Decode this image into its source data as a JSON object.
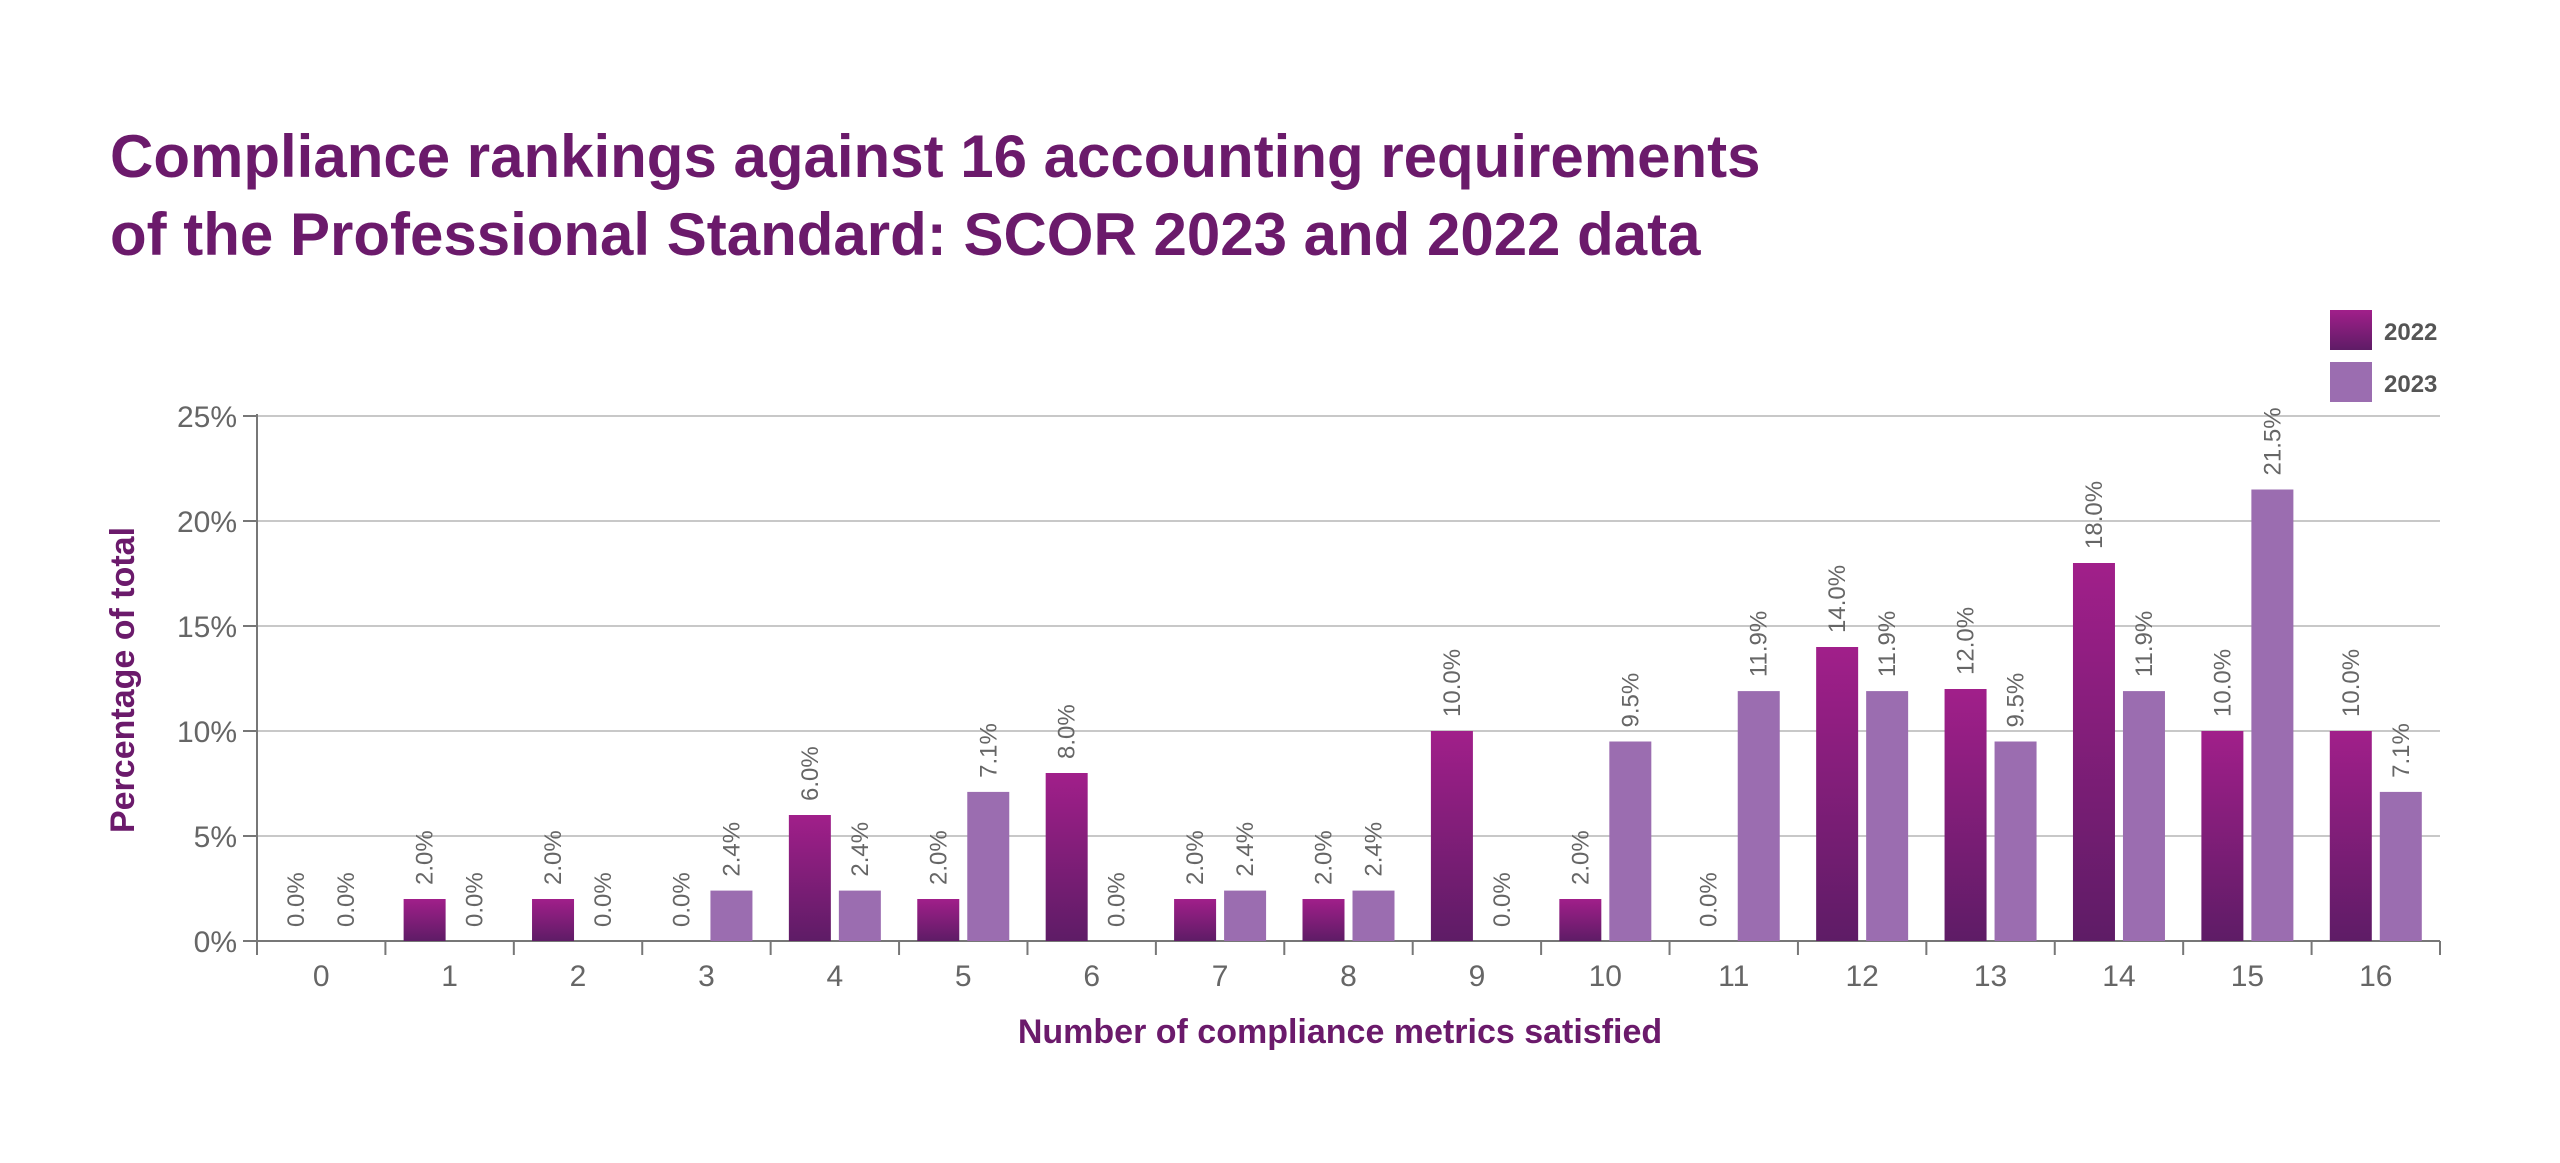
{
  "chart_data": {
    "type": "bar",
    "title_lines": [
      "Compliance rankings against 16 accounting requirements",
      "of the Professional Standard: SCOR 2023 and 2022 data"
    ],
    "xlabel": "Number of compliance metrics satisfied",
    "ylabel": "Percentage of total",
    "categories": [
      "0",
      "1",
      "2",
      "3",
      "4",
      "5",
      "6",
      "7",
      "8",
      "9",
      "10",
      "11",
      "12",
      "13",
      "14",
      "15",
      "16"
    ],
    "ylim": [
      0,
      25
    ],
    "yticks": [
      0,
      5,
      10,
      15,
      20,
      25
    ],
    "ytick_labels": [
      "0%",
      "5%",
      "10%",
      "15%",
      "20%",
      "25%"
    ],
    "grid": true,
    "legend_position": "top-right",
    "series": [
      {
        "name": "2022",
        "color": "#8a1c7c",
        "values": [
          0.0,
          2.0,
          2.0,
          0.0,
          6.0,
          2.0,
          8.0,
          2.0,
          2.0,
          10.0,
          2.0,
          0.0,
          14.0,
          12.0,
          18.0,
          10.0,
          10.0
        ],
        "labels": [
          "0.0%",
          "2.0%",
          "2.0%",
          "0.0%",
          "6.0%",
          "2.0%",
          "8.0%",
          "2.0%",
          "2.0%",
          "10.0%",
          "2.0%",
          "0.0%",
          "14.0%",
          "12.0%",
          "18.0%",
          "10.0%",
          "10.0%"
        ]
      },
      {
        "name": "2023",
        "color": "#9b6db0",
        "values": [
          0.0,
          0.0,
          0.0,
          2.4,
          2.4,
          7.1,
          0.0,
          2.4,
          2.4,
          0.0,
          9.5,
          11.9,
          11.9,
          9.5,
          11.9,
          21.5,
          7.1
        ],
        "labels": [
          "0.0%",
          "0.0%",
          "0.0%",
          "2.4%",
          "2.4%",
          "7.1%",
          "0.0%",
          "2.4%",
          "2.4%",
          "0.0%",
          "9.5%",
          "11.9%",
          "11.9%",
          "9.5%",
          "11.9%",
          "21.5%",
          "7.1%"
        ]
      }
    ]
  }
}
